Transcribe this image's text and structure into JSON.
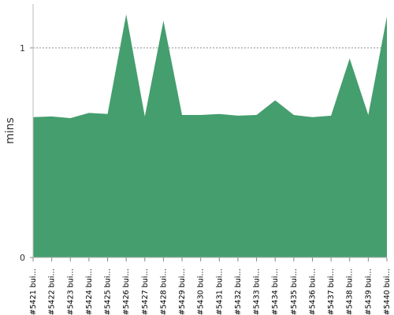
{
  "chart_data": {
    "type": "area",
    "y_label": "mins",
    "categories": [
      "#5421 bui…",
      "#5422 bui…",
      "#5423 bui…",
      "#5424 bui…",
      "#5425 bui…",
      "#5426 bui…",
      "#5427 bui…",
      "#5428 bui…",
      "#5429 bui…",
      "#5430 bui…",
      "#5431 bui…",
      "#5432 bui…",
      "#5433 bui…",
      "#5434 bui…",
      "#5435 bui…",
      "#5436 bui…",
      "#5437 bui…",
      "#5438 bui…",
      "#5439 bui…",
      "#5440 bui…"
    ],
    "values": [
      0.67,
      0.673,
      0.665,
      0.69,
      0.685,
      1.16,
      0.673,
      1.13,
      0.68,
      0.68,
      0.685,
      0.677,
      0.68,
      0.75,
      0.68,
      0.67,
      0.677,
      0.95,
      0.68,
      1.15
    ],
    "color": "#459e6e",
    "ylim": [
      0,
      1.21
    ],
    "yticks": [
      0,
      1
    ],
    "grid": true
  }
}
